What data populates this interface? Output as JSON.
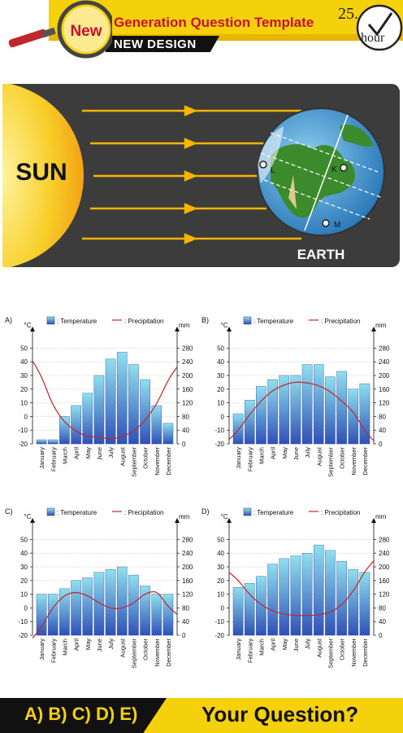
{
  "header": {
    "badge": "New",
    "title": "Generation Question Template",
    "subtitle": "NEW DESIGN",
    "clock_time": "25.",
    "clock_unit": "hour"
  },
  "diagram": {
    "sun_label": "SUN",
    "earth_label": "EARTH",
    "points": [
      "L",
      "K",
      "M"
    ]
  },
  "legend": {
    "temperature": ": Temperature",
    "precipitation": ": Precipitation"
  },
  "footer": {
    "answers": "A) B) C) D) E)",
    "question": "Your Question?"
  },
  "chart_data": [
    {
      "type": "bar",
      "panel": "A)",
      "y_left_label": "°C",
      "y_right_label": "mm",
      "y_left_ticks": [
        50,
        40,
        30,
        20,
        10,
        0,
        -10,
        -20
      ],
      "y_right_ticks": [
        280,
        240,
        200,
        160,
        120,
        80,
        40,
        0
      ],
      "ylim": [
        -20,
        55
      ],
      "y2lim": [
        0,
        300
      ],
      "categories": [
        "January",
        "February",
        "March",
        "April",
        "May",
        "June",
        "July",
        "August",
        "September",
        "October",
        "November",
        "December"
      ],
      "series": [
        {
          "name": "Temperature",
          "kind": "bar",
          "values": [
            -17,
            -17,
            0,
            8,
            17,
            30,
            42,
            47,
            38,
            27,
            8,
            -5
          ]
        },
        {
          "name": "Precipitation",
          "kind": "line",
          "axis": "right",
          "values": [
            195,
            115,
            65,
            38,
            22,
            20,
            15,
            22,
            38,
            70,
            118,
            185
          ]
        }
      ]
    },
    {
      "type": "bar",
      "panel": "B)",
      "y_left_label": "°C",
      "y_right_label": "mm",
      "y_left_ticks": [
        50,
        40,
        30,
        20,
        10,
        0,
        -10,
        -20
      ],
      "y_right_ticks": [
        280,
        240,
        200,
        160,
        120,
        80,
        40,
        0
      ],
      "ylim": [
        -20,
        55
      ],
      "y2lim": [
        0,
        300
      ],
      "categories": [
        "January",
        "February",
        "March",
        "April",
        "May",
        "June",
        "July",
        "August",
        "September",
        "October",
        "November",
        "December"
      ],
      "series": [
        {
          "name": "Temperature",
          "kind": "bar",
          "values": [
            2,
            12,
            22,
            27,
            30,
            30,
            38,
            38,
            29,
            33,
            20,
            24
          ]
        },
        {
          "name": "Precipitation",
          "kind": "line",
          "axis": "right",
          "values": [
            40,
            85,
            125,
            155,
            172,
            180,
            178,
            170,
            152,
            125,
            92,
            40
          ]
        }
      ]
    },
    {
      "type": "bar",
      "panel": "C)",
      "y_left_label": "°C",
      "y_right_label": "mm",
      "y_left_ticks": [
        50,
        40,
        30,
        20,
        10,
        0,
        -10,
        -20
      ],
      "y_right_ticks": [
        280,
        240,
        200,
        160,
        120,
        80,
        40,
        0
      ],
      "ylim": [
        -20,
        55
      ],
      "y2lim": [
        0,
        300
      ],
      "categories": [
        "January",
        "February",
        "March",
        "April",
        "May",
        "June",
        "July",
        "August",
        "September",
        "October",
        "November",
        "December"
      ],
      "series": [
        {
          "name": "Temperature",
          "kind": "bar",
          "values": [
            10,
            10,
            14,
            20,
            22,
            26,
            28,
            30,
            24,
            16,
            10,
            10
          ]
        },
        {
          "name": "Precipitation",
          "kind": "line",
          "axis": "right",
          "values": [
            25,
            80,
            115,
            125,
            115,
            95,
            80,
            80,
            95,
            120,
            125,
            85
          ]
        }
      ]
    },
    {
      "type": "bar",
      "panel": "D)",
      "y_left_label": "°C",
      "y_right_label": "mm",
      "y_left_ticks": [
        50,
        40,
        30,
        20,
        10,
        0,
        -10,
        -20
      ],
      "y_right_ticks": [
        280,
        240,
        200,
        160,
        120,
        80,
        40,
        0
      ],
      "ylim": [
        -20,
        55
      ],
      "y2lim": [
        0,
        300
      ],
      "categories": [
        "January",
        "February",
        "March",
        "April",
        "May",
        "June",
        "July",
        "August",
        "September",
        "October",
        "November",
        "December"
      ],
      "series": [
        {
          "name": "Temperature",
          "kind": "bar",
          "values": [
            15,
            18,
            23,
            32,
            36,
            38,
            40,
            46,
            42,
            34,
            28,
            26
          ]
        },
        {
          "name": "Precipitation",
          "kind": "line",
          "axis": "right",
          "values": [
            160,
            120,
            90,
            72,
            62,
            58,
            58,
            60,
            68,
            90,
            130,
            185
          ]
        }
      ]
    }
  ]
}
